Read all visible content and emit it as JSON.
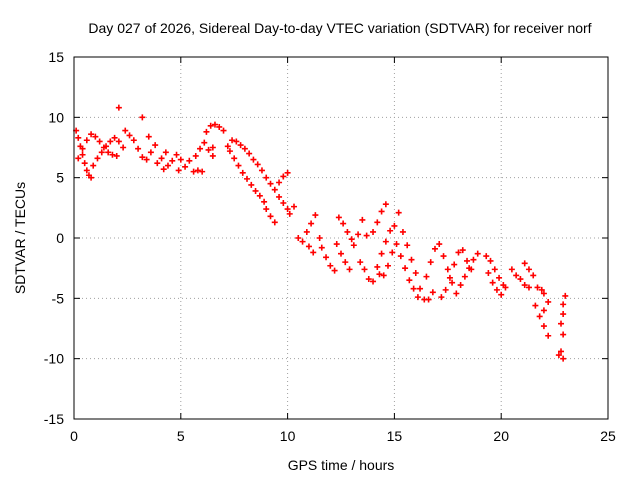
{
  "chart_data": {
    "type": "scatter",
    "title": "Day 027 of 2026, Sidereal Day-to-day VTEC variation (SDTVAR) for receiver norf",
    "xlabel": "GPS time / hours",
    "ylabel": "SDTVAR / TECUs",
    "xlim": [
      0,
      25
    ],
    "ylim": [
      -15,
      15
    ],
    "x_ticks": [
      0,
      5,
      10,
      15,
      20,
      25
    ],
    "y_ticks": [
      -15,
      -10,
      -5,
      0,
      5,
      10,
      15
    ],
    "grid": true,
    "marker": "plus",
    "series_color": "#ff0000",
    "series": [
      {
        "name": "SDTVAR",
        "points": [
          [
            0.1,
            8.9
          ],
          [
            0.2,
            8.3
          ],
          [
            0.3,
            7.6
          ],
          [
            0.4,
            6.9
          ],
          [
            0.5,
            6.2
          ],
          [
            0.6,
            5.6
          ],
          [
            0.7,
            5.2
          ],
          [
            0.8,
            5.0
          ],
          [
            0.2,
            6.6
          ],
          [
            0.4,
            7.4
          ],
          [
            0.6,
            8.1
          ],
          [
            0.8,
            8.6
          ],
          [
            1.0,
            8.4
          ],
          [
            1.2,
            8.0
          ],
          [
            1.4,
            7.5
          ],
          [
            1.6,
            7.1
          ],
          [
            0.9,
            6.0
          ],
          [
            1.1,
            6.6
          ],
          [
            1.3,
            7.1
          ],
          [
            1.5,
            7.6
          ],
          [
            1.7,
            8.0
          ],
          [
            1.9,
            8.3
          ],
          [
            2.1,
            8.0
          ],
          [
            2.3,
            7.5
          ],
          [
            1.8,
            6.9
          ],
          [
            2.0,
            6.8
          ],
          [
            2.1,
            10.8
          ],
          [
            2.4,
            8.9
          ],
          [
            2.6,
            8.5
          ],
          [
            2.8,
            8.1
          ],
          [
            3.0,
            7.4
          ],
          [
            3.2,
            10.0
          ],
          [
            3.2,
            6.7
          ],
          [
            3.4,
            6.5
          ],
          [
            3.6,
            7.1
          ],
          [
            3.8,
            7.7
          ],
          [
            3.5,
            8.4
          ],
          [
            3.9,
            6.2
          ],
          [
            4.1,
            6.6
          ],
          [
            4.3,
            7.1
          ],
          [
            4.2,
            5.7
          ],
          [
            4.4,
            6.0
          ],
          [
            4.6,
            6.4
          ],
          [
            4.8,
            6.9
          ],
          [
            5.0,
            6.5
          ],
          [
            4.9,
            5.6
          ],
          [
            5.2,
            5.9
          ],
          [
            5.4,
            6.4
          ],
          [
            5.6,
            5.5
          ],
          [
            5.8,
            5.6
          ],
          [
            6.0,
            5.5
          ],
          [
            5.7,
            6.8
          ],
          [
            5.9,
            7.4
          ],
          [
            6.1,
            7.9
          ],
          [
            6.3,
            7.3
          ],
          [
            6.5,
            6.8
          ],
          [
            6.2,
            8.8
          ],
          [
            6.4,
            9.3
          ],
          [
            6.6,
            9.4
          ],
          [
            6.8,
            9.2
          ],
          [
            7.0,
            8.9
          ],
          [
            6.5,
            7.5
          ],
          [
            7.2,
            7.6
          ],
          [
            7.3,
            7.2
          ],
          [
            7.4,
            8.1
          ],
          [
            7.6,
            8.0
          ],
          [
            7.8,
            7.7
          ],
          [
            8.0,
            7.4
          ],
          [
            8.2,
            7.0
          ],
          [
            8.4,
            6.5
          ],
          [
            7.5,
            6.6
          ],
          [
            7.7,
            6.0
          ],
          [
            7.9,
            5.4
          ],
          [
            8.1,
            4.9
          ],
          [
            8.3,
            4.4
          ],
          [
            8.5,
            3.9
          ],
          [
            8.7,
            3.5
          ],
          [
            8.9,
            3.0
          ],
          [
            8.6,
            6.1
          ],
          [
            8.8,
            5.6
          ],
          [
            9.0,
            5.0
          ],
          [
            9.2,
            4.5
          ],
          [
            9.4,
            4.0
          ],
          [
            9.6,
            3.4
          ],
          [
            9.8,
            2.9
          ],
          [
            10.0,
            2.4
          ],
          [
            9.0,
            2.4
          ],
          [
            9.2,
            1.8
          ],
          [
            9.4,
            1.3
          ],
          [
            9.6,
            4.6
          ],
          [
            9.8,
            5.1
          ],
          [
            10.0,
            5.4
          ],
          [
            10.1,
            2.0
          ],
          [
            10.3,
            2.6
          ],
          [
            10.5,
            0.0
          ],
          [
            10.7,
            -0.3
          ],
          [
            10.9,
            0.5
          ],
          [
            11.1,
            1.2
          ],
          [
            11.3,
            1.9
          ],
          [
            11.0,
            -0.7
          ],
          [
            11.2,
            -1.2
          ],
          [
            11.5,
            0.0
          ],
          [
            11.6,
            -0.8
          ],
          [
            11.8,
            -1.6
          ],
          [
            12.0,
            -2.3
          ],
          [
            12.2,
            -2.7
          ],
          [
            12.4,
            1.7
          ],
          [
            12.6,
            1.2
          ],
          [
            12.8,
            0.5
          ],
          [
            13.0,
            -0.1
          ],
          [
            12.3,
            -0.5
          ],
          [
            12.5,
            -1.3
          ],
          [
            12.7,
            -2.0
          ],
          [
            12.9,
            -2.6
          ],
          [
            13.1,
            -0.6
          ],
          [
            13.3,
            0.3
          ],
          [
            13.5,
            1.5
          ],
          [
            13.7,
            0.2
          ],
          [
            13.4,
            -2.0
          ],
          [
            13.6,
            -2.6
          ],
          [
            13.8,
            -3.4
          ],
          [
            14.0,
            -3.6
          ],
          [
            14.2,
            -2.4
          ],
          [
            14.4,
            -1.3
          ],
          [
            14.6,
            -0.3
          ],
          [
            14.8,
            0.6
          ],
          [
            14.0,
            0.5
          ],
          [
            14.2,
            1.3
          ],
          [
            14.4,
            2.2
          ],
          [
            14.6,
            2.8
          ],
          [
            14.3,
            -3.0
          ],
          [
            14.5,
            -3.1
          ],
          [
            14.7,
            -2.3
          ],
          [
            14.9,
            -1.2
          ],
          [
            15.0,
            1.0
          ],
          [
            15.2,
            2.1
          ],
          [
            15.1,
            -0.5
          ],
          [
            15.3,
            -1.5
          ],
          [
            15.5,
            -2.5
          ],
          [
            15.7,
            -3.5
          ],
          [
            15.9,
            -4.2
          ],
          [
            16.1,
            -4.9
          ],
          [
            15.4,
            0.5
          ],
          [
            15.6,
            -0.6
          ],
          [
            15.8,
            -1.8
          ],
          [
            16.0,
            -2.9
          ],
          [
            16.2,
            -4.2
          ],
          [
            16.4,
            -5.1
          ],
          [
            16.6,
            -5.1
          ],
          [
            16.8,
            -4.5
          ],
          [
            16.5,
            -3.2
          ],
          [
            16.7,
            -2.0
          ],
          [
            16.9,
            -0.9
          ],
          [
            17.1,
            -0.5
          ],
          [
            17.3,
            -1.5
          ],
          [
            17.5,
            -2.6
          ],
          [
            17.7,
            -3.7
          ],
          [
            17.9,
            -4.6
          ],
          [
            17.2,
            -4.9
          ],
          [
            17.4,
            -4.3
          ],
          [
            17.6,
            -3.3
          ],
          [
            17.8,
            -2.2
          ],
          [
            18.0,
            -1.2
          ],
          [
            18.2,
            -1.0
          ],
          [
            18.4,
            -1.9
          ],
          [
            18.6,
            -2.6
          ],
          [
            18.1,
            -3.9
          ],
          [
            18.3,
            -3.2
          ],
          [
            18.5,
            -2.5
          ],
          [
            18.7,
            -1.8
          ],
          [
            18.9,
            -1.3
          ],
          [
            19.3,
            -1.5
          ],
          [
            19.5,
            -1.9
          ],
          [
            19.7,
            -2.6
          ],
          [
            19.9,
            -3.3
          ],
          [
            20.1,
            -3.9
          ],
          [
            19.4,
            -2.9
          ],
          [
            19.6,
            -3.7
          ],
          [
            19.8,
            -4.3
          ],
          [
            20.0,
            -4.7
          ],
          [
            20.2,
            -4.1
          ],
          [
            20.5,
            -2.6
          ],
          [
            20.7,
            -3.1
          ],
          [
            20.9,
            -3.4
          ],
          [
            21.1,
            -3.9
          ],
          [
            21.3,
            -4.1
          ],
          [
            21.1,
            -2.1
          ],
          [
            21.3,
            -2.6
          ],
          [
            21.5,
            -3.1
          ],
          [
            21.7,
            -4.1
          ],
          [
            21.9,
            -4.3
          ],
          [
            21.6,
            -5.6
          ],
          [
            21.8,
            -6.5
          ],
          [
            22.0,
            -7.3
          ],
          [
            22.2,
            -8.1
          ],
          [
            22.0,
            -4.6
          ],
          [
            22.2,
            -5.3
          ],
          [
            22.0,
            -6.0
          ],
          [
            22.8,
            -9.4
          ],
          [
            22.9,
            -10.0
          ],
          [
            22.7,
            -9.7
          ],
          [
            22.9,
            -8.0
          ],
          [
            22.8,
            -7.1
          ],
          [
            22.9,
            -6.3
          ],
          [
            22.9,
            -5.5
          ],
          [
            23.0,
            -4.8
          ]
        ]
      }
    ]
  }
}
